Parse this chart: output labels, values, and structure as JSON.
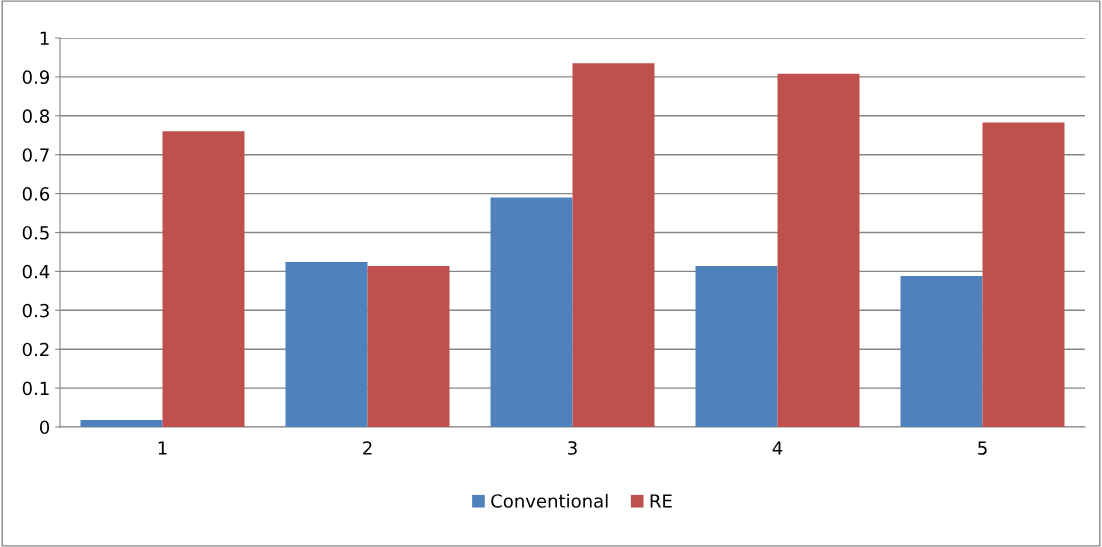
{
  "chart_data": {
    "type": "bar",
    "categories": [
      "1",
      "2",
      "3",
      "4",
      "5"
    ],
    "series": [
      {
        "name": "Conventional",
        "color": "#4f81bd",
        "values": [
          0.018,
          0.424,
          0.59,
          0.414,
          0.388
        ]
      },
      {
        "name": "RE",
        "color": "#c0504d",
        "values": [
          0.76,
          0.414,
          0.935,
          0.908,
          0.783
        ]
      }
    ],
    "ylim": [
      0,
      1
    ],
    "yticks": [
      0,
      0.1,
      0.2,
      0.3,
      0.4,
      0.5,
      0.6,
      0.7,
      0.8,
      0.9,
      1
    ],
    "grid": "y",
    "legend": "bottom"
  }
}
